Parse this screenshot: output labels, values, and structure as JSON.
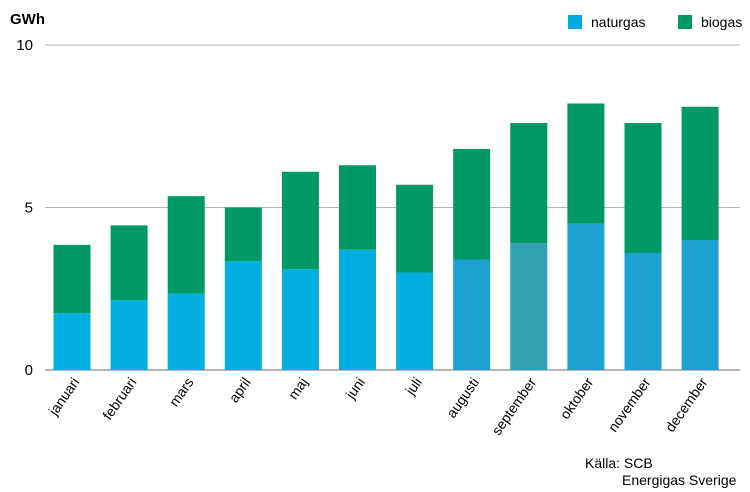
{
  "chart_data": {
    "type": "bar",
    "stacked": true,
    "unit_label": "GWh",
    "categories": [
      "januari",
      "februari",
      "mars",
      "april",
      "maj",
      "juni",
      "juli",
      "augusti",
      "september",
      "oktober",
      "november",
      "december"
    ],
    "series": [
      {
        "name": "naturgas",
        "color": "#00a9e0",
        "values": [
          1.75,
          2.15,
          2.35,
          3.35,
          3.1,
          3.7,
          3.0,
          3.4,
          3.9,
          4.5,
          3.6,
          4.0
        ],
        "bar_colors": [
          "#00aee0",
          "#00aee0",
          "#00aee0",
          "#00aee0",
          "#00aee0",
          "#00aee0",
          "#00aee0",
          "#1ea0d0",
          "#2fa3b3",
          "#1ea0d0",
          "#1ea0d0",
          "#1ea0d0"
        ]
      },
      {
        "name": "biogas",
        "color": "#009966",
        "values": [
          2.1,
          2.3,
          3.0,
          1.65,
          3.0,
          2.6,
          2.7,
          3.4,
          3.7,
          3.7,
          4.0,
          4.1
        ]
      }
    ],
    "ylim": [
      0,
      10
    ],
    "yticks": [
      0,
      5,
      10
    ],
    "grid": true,
    "legend_position": "top-right"
  },
  "source": {
    "line1": "Källa: SCB",
    "line2": "Energigas Sverige"
  }
}
